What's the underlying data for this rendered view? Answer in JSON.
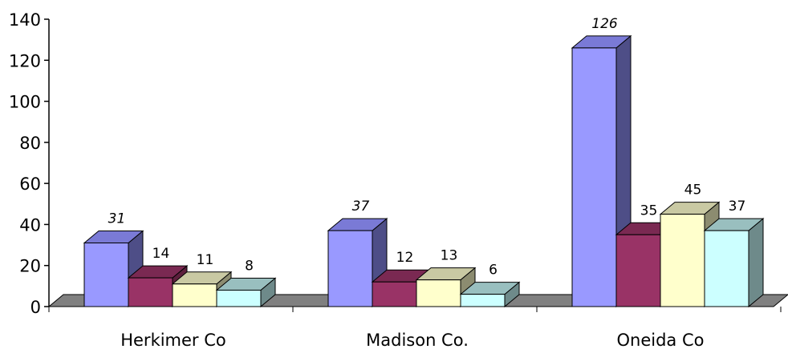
{
  "chart_data": {
    "type": "bar",
    "title": "",
    "xlabel": "",
    "ylabel": "",
    "ylim": [
      0,
      140
    ],
    "yticks": [
      "0",
      "20",
      "40",
      "60",
      "80",
      "100",
      "120",
      "140"
    ],
    "categories": [
      "Herkimer Co",
      "Madison Co.",
      "Oneida Co"
    ],
    "series": [
      {
        "values": [
          31,
          37,
          126
        ],
        "labels": [
          "31",
          "37",
          "126"
        ],
        "color": "#9999ff",
        "side_color": "#4e4e87",
        "top_color": "#7a7ad6",
        "italic_labels": true
      },
      {
        "values": [
          14,
          12,
          35
        ],
        "labels": [
          "14",
          "12",
          "35"
        ],
        "color": "#993366",
        "side_color": "#5c1f3d",
        "top_color": "#7a2952",
        "italic_labels": false
      },
      {
        "values": [
          11,
          13,
          45
        ],
        "labels": [
          "11",
          "13",
          "45"
        ],
        "color": "#ffffcc",
        "side_color": "#8c8c70",
        "top_color": "#c9c9a3",
        "italic_labels": false
      },
      {
        "values": [
          8,
          6,
          37
        ],
        "labels": [
          "8",
          "6",
          "37"
        ],
        "color": "#ccffff",
        "side_color": "#6e8a8a",
        "top_color": "#99bfbf",
        "italic_labels": false
      }
    ],
    "floor_color": "#808080",
    "grid": false,
    "legend": "none"
  }
}
